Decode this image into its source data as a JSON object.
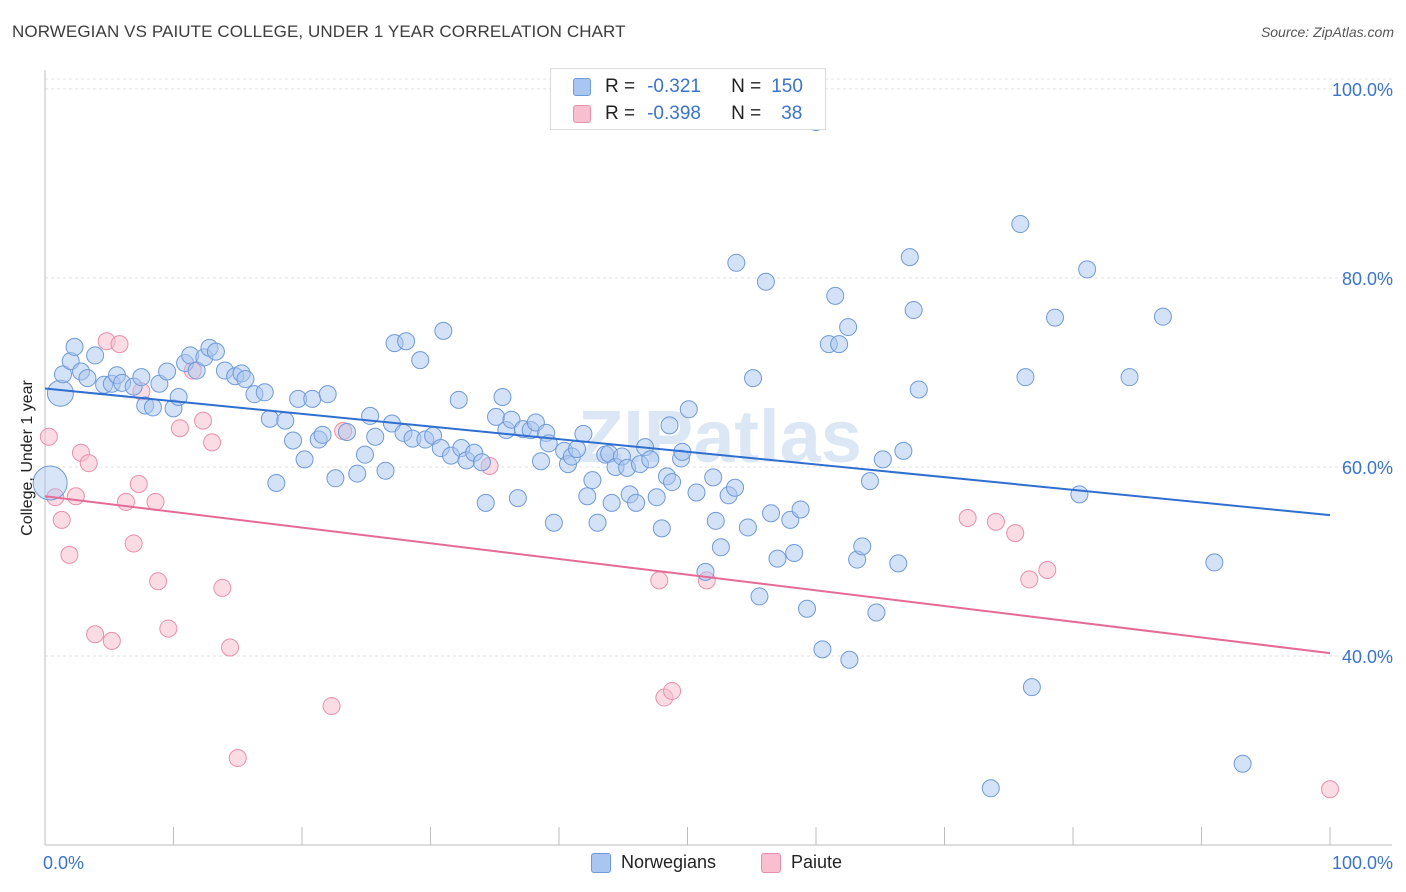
{
  "header": {
    "title": "NORWEGIAN VS PAIUTE COLLEGE, UNDER 1 YEAR CORRELATION CHART",
    "source": "Source: ZipAtlas.com"
  },
  "legend": {
    "rows": [
      {
        "r_label": "R =",
        "r_value": "-0.321",
        "n_label": "N =",
        "n_value": "150"
      },
      {
        "r_label": "R =",
        "r_value": "-0.398",
        "n_label": "N =",
        "n_value": "38"
      }
    ]
  },
  "bottom_legend": [
    "Norwegians",
    "Paiute"
  ],
  "watermark": "ZIPatlas",
  "colors": {
    "norwegians_fill": "#a9c6f0",
    "norwegians_stroke": "#6f9ad8",
    "norwegians_line": "#2f6fd0",
    "paiute_fill": "#f7bfd0",
    "paiute_stroke": "#e98fab",
    "paiute_line": "#e56b97",
    "axis_text": "#3a74c9"
  },
  "chart_data": {
    "type": "scatter",
    "title": "NORWEGIAN VS PAIUTE COLLEGE, UNDER 1 YEAR CORRELATION CHART",
    "xlabel": "",
    "ylabel": "College, Under 1 year",
    "xlim": [
      0,
      100
    ],
    "ylim": [
      20,
      102
    ],
    "x_tick_labels": [
      "0.0%",
      "100.0%"
    ],
    "y_ticks": [
      40,
      60,
      80,
      100
    ],
    "y_tick_labels": [
      "40.0%",
      "60.0%",
      "80.0%",
      "100.0%"
    ],
    "grid": true,
    "legend_position": "top-center",
    "series": [
      {
        "name": "Norwegians",
        "r": -0.321,
        "n": 150,
        "trend": {
          "x": [
            0,
            100
          ],
          "y": [
            68.3,
            54.9
          ]
        },
        "points": [
          [
            1.2,
            67.8
          ],
          [
            1.4,
            69.8
          ],
          [
            2.0,
            71.2
          ],
          [
            2.3,
            72.7
          ],
          [
            2.8,
            70.1
          ],
          [
            3.3,
            69.4
          ],
          [
            3.9,
            71.8
          ],
          [
            4.6,
            68.7
          ],
          [
            5.2,
            68.8
          ],
          [
            5.6,
            69.7
          ],
          [
            6.0,
            68.9
          ],
          [
            6.9,
            68.5
          ],
          [
            7.5,
            69.5
          ],
          [
            7.8,
            66.5
          ],
          [
            8.4,
            66.3
          ],
          [
            8.9,
            68.8
          ],
          [
            9.5,
            70.1
          ],
          [
            10.0,
            66.2
          ],
          [
            10.4,
            67.4
          ],
          [
            10.9,
            71.0
          ],
          [
            11.3,
            71.8
          ],
          [
            11.8,
            70.2
          ],
          [
            12.4,
            71.6
          ],
          [
            12.8,
            72.6
          ],
          [
            13.3,
            72.2
          ],
          [
            14.0,
            70.2
          ],
          [
            14.8,
            69.6
          ],
          [
            15.3,
            69.9
          ],
          [
            15.6,
            69.3
          ],
          [
            16.3,
            67.7
          ],
          [
            17.1,
            67.9
          ],
          [
            17.5,
            65.1
          ],
          [
            18.0,
            58.3
          ],
          [
            18.7,
            64.9
          ],
          [
            19.3,
            62.8
          ],
          [
            19.7,
            67.2
          ],
          [
            20.2,
            60.8
          ],
          [
            20.8,
            67.2
          ],
          [
            21.3,
            62.9
          ],
          [
            21.6,
            63.4
          ],
          [
            22.0,
            67.7
          ],
          [
            22.6,
            58.8
          ],
          [
            23.5,
            63.7
          ],
          [
            24.3,
            59.3
          ],
          [
            24.9,
            61.3
          ],
          [
            25.3,
            65.4
          ],
          [
            25.7,
            63.2
          ],
          [
            26.5,
            59.6
          ],
          [
            27.0,
            64.6
          ],
          [
            27.2,
            73.1
          ],
          [
            27.9,
            63.6
          ],
          [
            28.1,
            73.3
          ],
          [
            28.6,
            63.0
          ],
          [
            29.2,
            71.3
          ],
          [
            29.6,
            62.9
          ],
          [
            30.2,
            63.3
          ],
          [
            30.8,
            62.0
          ],
          [
            31.0,
            74.4
          ],
          [
            31.6,
            61.2
          ],
          [
            32.2,
            67.1
          ],
          [
            32.4,
            62.0
          ],
          [
            32.8,
            60.7
          ],
          [
            33.4,
            61.5
          ],
          [
            34.0,
            60.5
          ],
          [
            34.3,
            56.2
          ],
          [
            35.1,
            65.3
          ],
          [
            35.6,
            67.4
          ],
          [
            35.9,
            63.9
          ],
          [
            36.3,
            65.0
          ],
          [
            36.8,
            56.7
          ],
          [
            37.2,
            64.0
          ],
          [
            37.8,
            63.9
          ],
          [
            38.2,
            64.7
          ],
          [
            38.6,
            60.6
          ],
          [
            39.0,
            63.6
          ],
          [
            39.2,
            62.5
          ],
          [
            39.6,
            54.1
          ],
          [
            40.4,
            61.7
          ],
          [
            40.7,
            60.3
          ],
          [
            41.0,
            61.1
          ],
          [
            41.4,
            61.9
          ],
          [
            41.9,
            63.5
          ],
          [
            42.2,
            56.9
          ],
          [
            42.6,
            58.6
          ],
          [
            43.0,
            54.1
          ],
          [
            43.6,
            61.3
          ],
          [
            43.9,
            61.4
          ],
          [
            44.1,
            56.2
          ],
          [
            44.4,
            60.0
          ],
          [
            44.9,
            61.1
          ],
          [
            45.3,
            59.9
          ],
          [
            45.5,
            57.1
          ],
          [
            46.0,
            56.2
          ],
          [
            46.3,
            60.3
          ],
          [
            46.7,
            62.1
          ],
          [
            47.1,
            60.8
          ],
          [
            47.6,
            56.8
          ],
          [
            48.0,
            53.5
          ],
          [
            48.4,
            59.0
          ],
          [
            48.6,
            64.4
          ],
          [
            48.8,
            58.4
          ],
          [
            49.5,
            60.9
          ],
          [
            49.6,
            61.6
          ],
          [
            50.1,
            66.1
          ],
          [
            50.7,
            57.3
          ],
          [
            51.4,
            48.9
          ],
          [
            52.0,
            58.9
          ],
          [
            52.2,
            54.3
          ],
          [
            52.6,
            51.5
          ],
          [
            53.2,
            57.0
          ],
          [
            53.7,
            57.8
          ],
          [
            53.8,
            81.6
          ],
          [
            54.7,
            53.6
          ],
          [
            55.1,
            69.4
          ],
          [
            55.6,
            46.3
          ],
          [
            56.1,
            79.6
          ],
          [
            56.5,
            55.1
          ],
          [
            57.0,
            50.3
          ],
          [
            58.0,
            54.4
          ],
          [
            58.3,
            50.9
          ],
          [
            58.8,
            55.5
          ],
          [
            59.3,
            45.0
          ],
          [
            60.0,
            96.5
          ],
          [
            60.5,
            40.7
          ],
          [
            61.0,
            73.0
          ],
          [
            61.5,
            78.1
          ],
          [
            61.8,
            73.0
          ],
          [
            62.5,
            74.8
          ],
          [
            62.6,
            39.6
          ],
          [
            63.2,
            50.2
          ],
          [
            63.6,
            51.6
          ],
          [
            64.2,
            58.5
          ],
          [
            64.7,
            44.6
          ],
          [
            65.2,
            60.8
          ],
          [
            66.4,
            49.8
          ],
          [
            66.8,
            61.7
          ],
          [
            67.3,
            82.2
          ],
          [
            67.6,
            76.6
          ],
          [
            68.0,
            68.2
          ],
          [
            73.6,
            26.0
          ],
          [
            75.9,
            85.7
          ],
          [
            76.3,
            69.5
          ],
          [
            76.8,
            36.7
          ],
          [
            78.6,
            75.8
          ],
          [
            80.5,
            57.1
          ],
          [
            81.1,
            80.9
          ],
          [
            84.4,
            69.5
          ],
          [
            87.0,
            75.9
          ],
          [
            91.0,
            49.9
          ],
          [
            93.2,
            28.6
          ]
        ]
      },
      {
        "name": "Paiute",
        "r": -0.398,
        "n": 38,
        "trend": {
          "x": [
            0,
            100
          ],
          "y": [
            56.9,
            40.3
          ]
        },
        "points": [
          [
            0.3,
            63.2
          ],
          [
            0.8,
            56.8
          ],
          [
            1.3,
            54.4
          ],
          [
            1.9,
            50.7
          ],
          [
            2.4,
            56.9
          ],
          [
            2.8,
            61.5
          ],
          [
            3.4,
            60.4
          ],
          [
            3.9,
            42.3
          ],
          [
            4.8,
            73.3
          ],
          [
            5.2,
            41.6
          ],
          [
            5.8,
            73.0
          ],
          [
            6.3,
            56.3
          ],
          [
            6.9,
            51.9
          ],
          [
            7.3,
            58.2
          ],
          [
            7.5,
            68.0
          ],
          [
            8.6,
            56.3
          ],
          [
            8.8,
            47.9
          ],
          [
            9.6,
            42.9
          ],
          [
            10.5,
            64.1
          ],
          [
            11.5,
            70.2
          ],
          [
            12.3,
            64.9
          ],
          [
            13.0,
            62.6
          ],
          [
            13.8,
            47.2
          ],
          [
            14.4,
            40.9
          ],
          [
            15.0,
            29.2
          ],
          [
            22.3,
            34.7
          ],
          [
            23.2,
            63.8
          ],
          [
            34.6,
            60.1
          ],
          [
            47.8,
            48.0
          ],
          [
            48.2,
            35.6
          ],
          [
            48.8,
            36.3
          ],
          [
            51.5,
            48.0
          ],
          [
            71.8,
            54.6
          ],
          [
            74.0,
            54.2
          ],
          [
            75.5,
            53.0
          ],
          [
            76.6,
            48.1
          ],
          [
            78.0,
            49.1
          ],
          [
            100.0,
            25.9
          ]
        ]
      }
    ]
  }
}
